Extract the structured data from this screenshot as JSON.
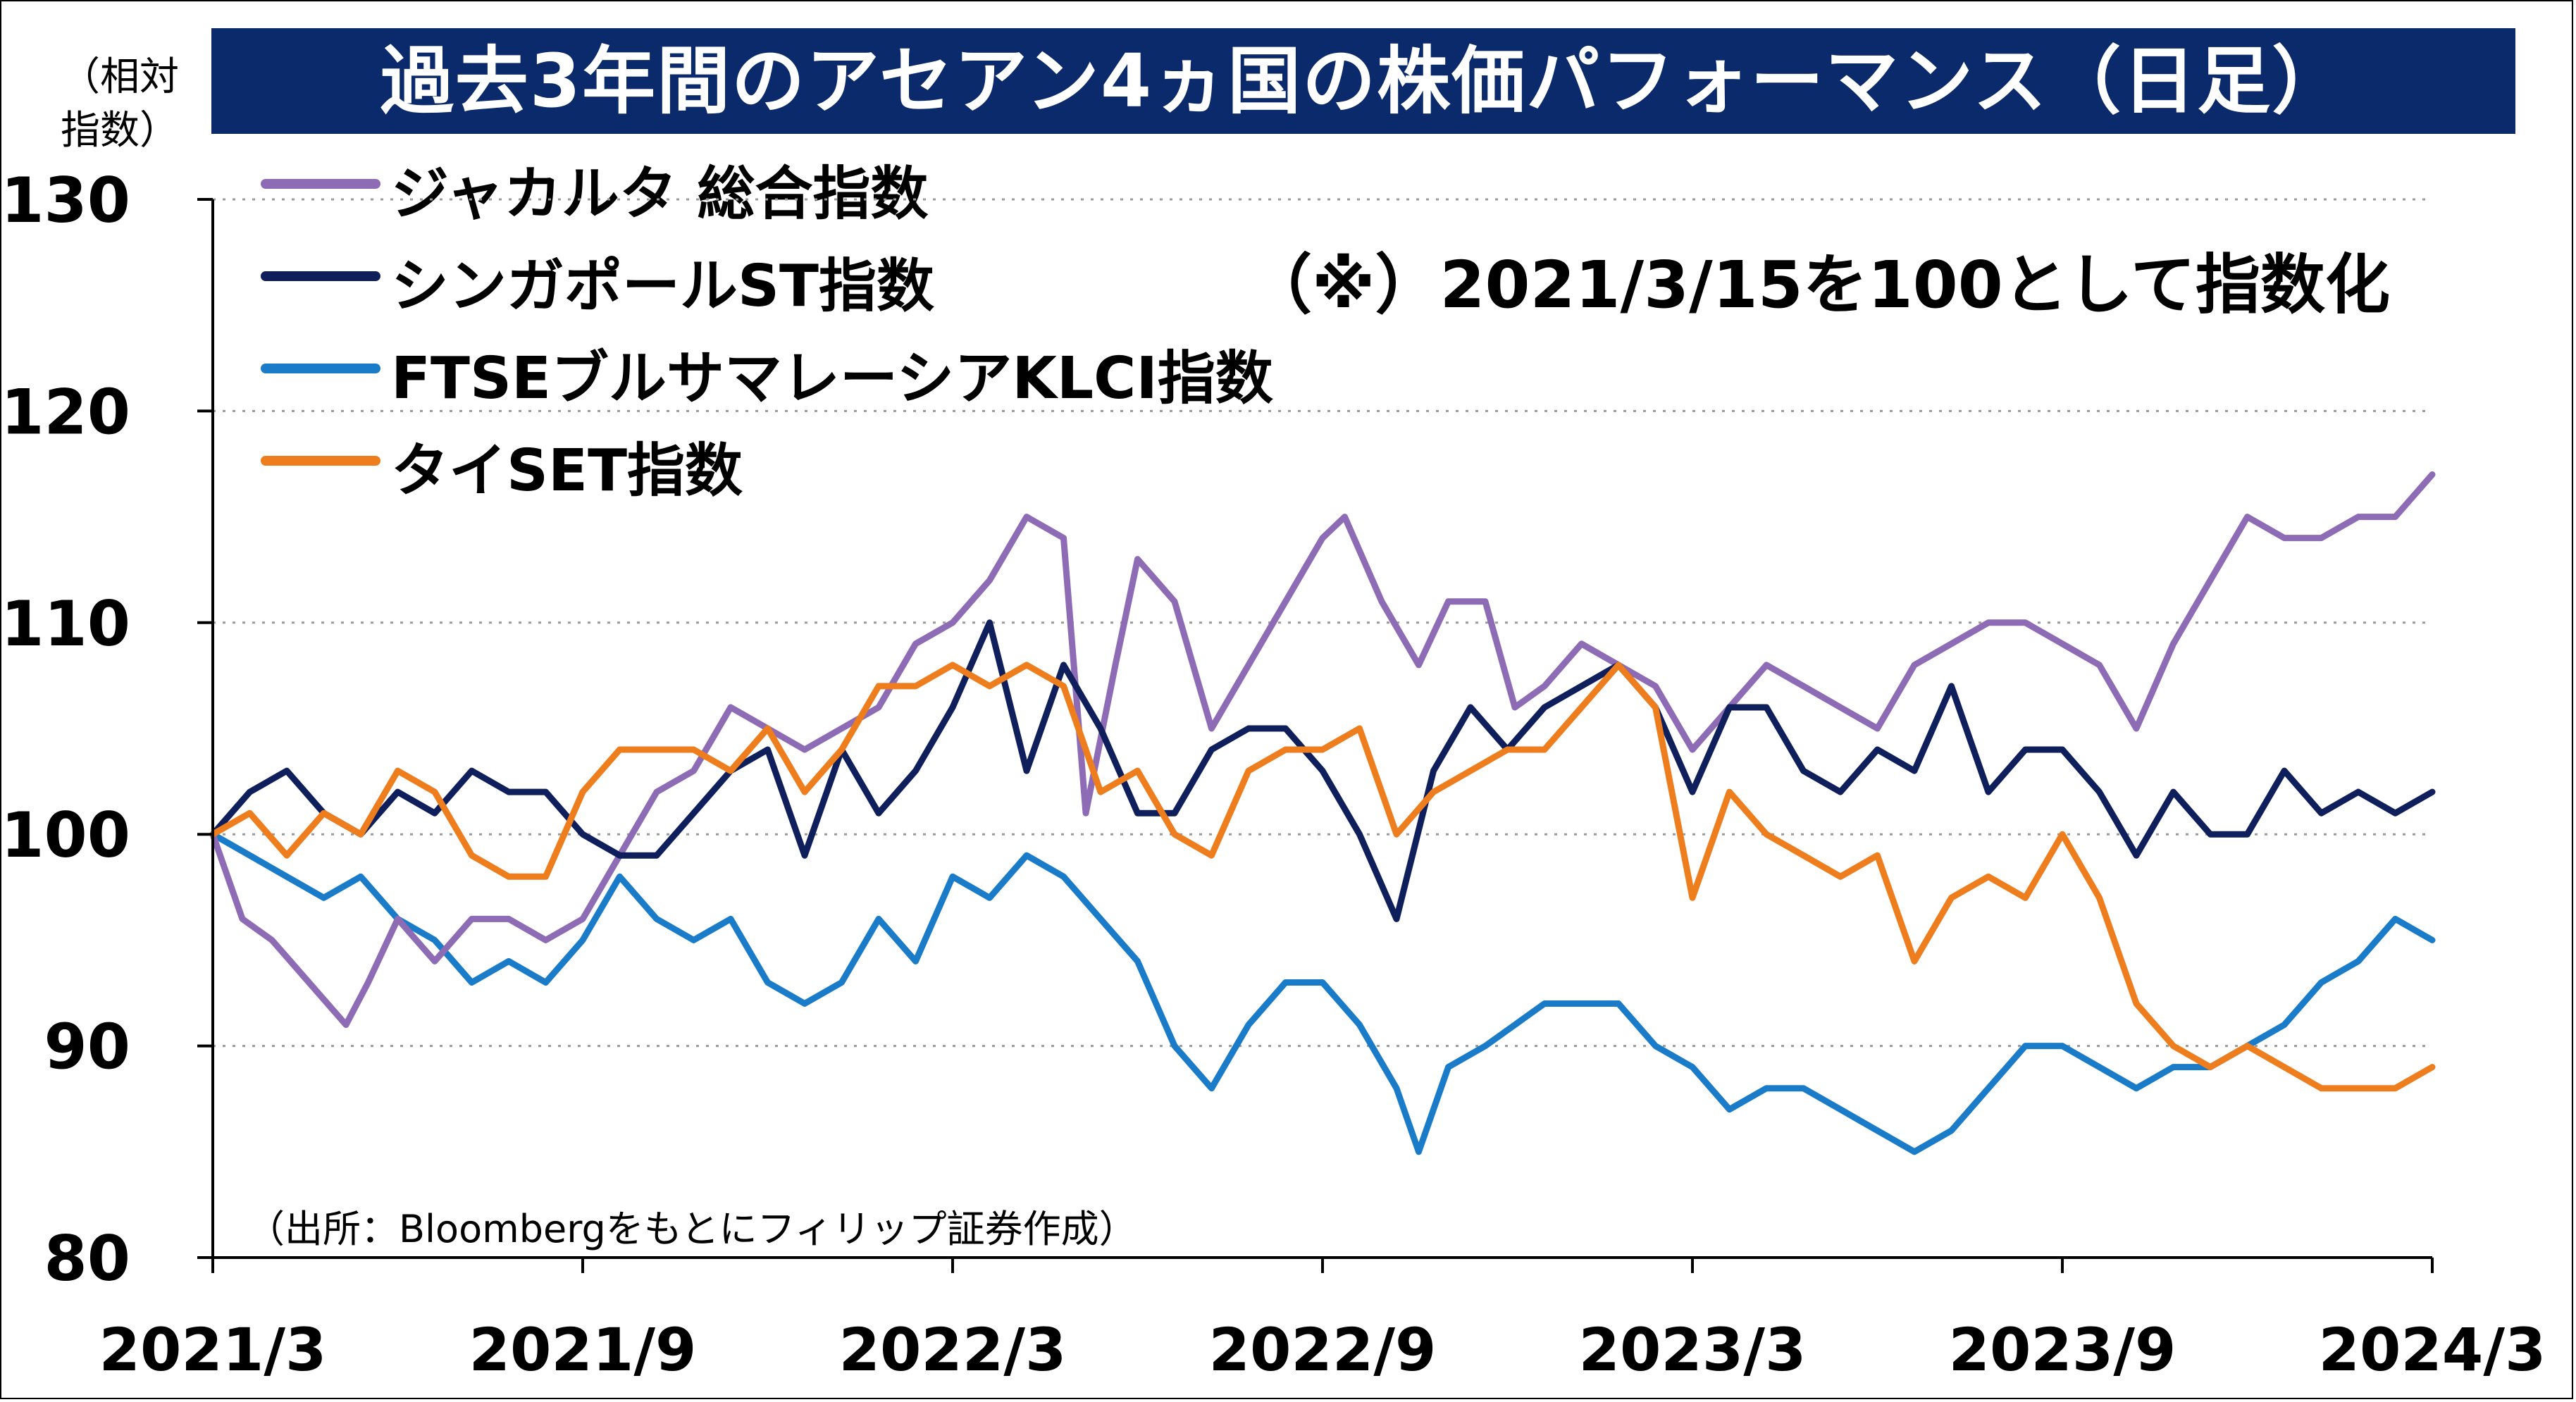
{
  "title": "過去3年間のアセアン4ヵ国の株価パフォーマンス（日足）",
  "unit_label": "（相対\n指数）",
  "note": "（※）2021/3/15を100として指数化",
  "source": "（出所：Bloombergをもとにフィリップ証券作成）",
  "chart_data": {
    "type": "line",
    "title": "過去3年間のアセアン4ヵ国の株価パフォーマンス（日足）",
    "ylabel": "（相対指数）",
    "xlabel": "",
    "ylim": [
      80,
      130
    ],
    "xlim": [
      2021.2,
      2024.2
    ],
    "y_ticks": [
      80,
      90,
      100,
      110,
      120,
      130
    ],
    "x_ticks": [
      {
        "label": "2021/3",
        "t": 2021.2
      },
      {
        "label": "2021/9",
        "t": 2021.7
      },
      {
        "label": "2022/3",
        "t": 2022.2
      },
      {
        "label": "2022/9",
        "t": 2022.7
      },
      {
        "label": "2023/3",
        "t": 2023.2
      },
      {
        "label": "2023/9",
        "t": 2023.7
      },
      {
        "label": "2024/3",
        "t": 2024.2
      }
    ],
    "grid": true,
    "legend_position": "top-left",
    "series": [
      {
        "name": "ジャカルタ 総合指数",
        "color": "#8e6bb5",
        "points": [
          [
            2021.2,
            100
          ],
          [
            2021.24,
            96
          ],
          [
            2021.28,
            95
          ],
          [
            2021.33,
            93
          ],
          [
            2021.38,
            91
          ],
          [
            2021.41,
            93
          ],
          [
            2021.45,
            96
          ],
          [
            2021.5,
            94
          ],
          [
            2021.55,
            96
          ],
          [
            2021.6,
            96
          ],
          [
            2021.65,
            95
          ],
          [
            2021.7,
            96
          ],
          [
            2021.75,
            99
          ],
          [
            2021.8,
            102
          ],
          [
            2021.85,
            103
          ],
          [
            2021.9,
            106
          ],
          [
            2021.95,
            105
          ],
          [
            2022.0,
            104
          ],
          [
            2022.05,
            105
          ],
          [
            2022.1,
            106
          ],
          [
            2022.15,
            109
          ],
          [
            2022.2,
            110
          ],
          [
            2022.25,
            112
          ],
          [
            2022.3,
            115
          ],
          [
            2022.35,
            114
          ],
          [
            2022.38,
            101
          ],
          [
            2022.42,
            108
          ],
          [
            2022.45,
            113
          ],
          [
            2022.5,
            111
          ],
          [
            2022.55,
            105
          ],
          [
            2022.6,
            108
          ],
          [
            2022.65,
            111
          ],
          [
            2022.7,
            114
          ],
          [
            2022.73,
            115
          ],
          [
            2022.78,
            111
          ],
          [
            2022.83,
            108
          ],
          [
            2022.87,
            111
          ],
          [
            2022.92,
            111
          ],
          [
            2022.96,
            106
          ],
          [
            2023.0,
            107
          ],
          [
            2023.05,
            109
          ],
          [
            2023.1,
            108
          ],
          [
            2023.15,
            107
          ],
          [
            2023.2,
            104
          ],
          [
            2023.25,
            106
          ],
          [
            2023.3,
            108
          ],
          [
            2023.35,
            107
          ],
          [
            2023.4,
            106
          ],
          [
            2023.45,
            105
          ],
          [
            2023.5,
            108
          ],
          [
            2023.55,
            109
          ],
          [
            2023.6,
            110
          ],
          [
            2023.65,
            110
          ],
          [
            2023.7,
            109
          ],
          [
            2023.75,
            108
          ],
          [
            2023.8,
            105
          ],
          [
            2023.85,
            109
          ],
          [
            2023.9,
            112
          ],
          [
            2023.95,
            115
          ],
          [
            2024.0,
            114
          ],
          [
            2024.05,
            114
          ],
          [
            2024.1,
            115
          ],
          [
            2024.15,
            115
          ],
          [
            2024.2,
            117
          ]
        ]
      },
      {
        "name": "シンガポールST指数",
        "color": "#0f1f5c",
        "points": [
          [
            2021.2,
            100
          ],
          [
            2021.25,
            102
          ],
          [
            2021.3,
            103
          ],
          [
            2021.35,
            101
          ],
          [
            2021.4,
            100
          ],
          [
            2021.45,
            102
          ],
          [
            2021.5,
            101
          ],
          [
            2021.55,
            103
          ],
          [
            2021.6,
            102
          ],
          [
            2021.65,
            102
          ],
          [
            2021.7,
            100
          ],
          [
            2021.75,
            99
          ],
          [
            2021.8,
            99
          ],
          [
            2021.85,
            101
          ],
          [
            2021.9,
            103
          ],
          [
            2021.95,
            104
          ],
          [
            2022.0,
            99
          ],
          [
            2022.05,
            104
          ],
          [
            2022.1,
            101
          ],
          [
            2022.15,
            103
          ],
          [
            2022.2,
            106
          ],
          [
            2022.25,
            110
          ],
          [
            2022.3,
            103
          ],
          [
            2022.35,
            108
          ],
          [
            2022.4,
            105
          ],
          [
            2022.45,
            101
          ],
          [
            2022.5,
            101
          ],
          [
            2022.55,
            104
          ],
          [
            2022.6,
            105
          ],
          [
            2022.65,
            105
          ],
          [
            2022.7,
            103
          ],
          [
            2022.75,
            100
          ],
          [
            2022.8,
            96
          ],
          [
            2022.85,
            103
          ],
          [
            2022.9,
            106
          ],
          [
            2022.95,
            104
          ],
          [
            2023.0,
            106
          ],
          [
            2023.05,
            107
          ],
          [
            2023.1,
            108
          ],
          [
            2023.15,
            106
          ],
          [
            2023.2,
            102
          ],
          [
            2023.25,
            106
          ],
          [
            2023.3,
            106
          ],
          [
            2023.35,
            103
          ],
          [
            2023.4,
            102
          ],
          [
            2023.45,
            104
          ],
          [
            2023.5,
            103
          ],
          [
            2023.55,
            107
          ],
          [
            2023.6,
            102
          ],
          [
            2023.65,
            104
          ],
          [
            2023.7,
            104
          ],
          [
            2023.75,
            102
          ],
          [
            2023.8,
            99
          ],
          [
            2023.85,
            102
          ],
          [
            2023.9,
            100
          ],
          [
            2023.95,
            100
          ],
          [
            2024.0,
            103
          ],
          [
            2024.05,
            101
          ],
          [
            2024.1,
            102
          ],
          [
            2024.15,
            101
          ],
          [
            2024.2,
            102
          ]
        ]
      },
      {
        "name": "FTSEブルサマレーシアKLCI指数",
        "color": "#1a7cc9",
        "points": [
          [
            2021.2,
            100
          ],
          [
            2021.25,
            99
          ],
          [
            2021.3,
            98
          ],
          [
            2021.35,
            97
          ],
          [
            2021.4,
            98
          ],
          [
            2021.45,
            96
          ],
          [
            2021.5,
            95
          ],
          [
            2021.55,
            93
          ],
          [
            2021.6,
            94
          ],
          [
            2021.65,
            93
          ],
          [
            2021.7,
            95
          ],
          [
            2021.75,
            98
          ],
          [
            2021.8,
            96
          ],
          [
            2021.85,
            95
          ],
          [
            2021.9,
            96
          ],
          [
            2021.95,
            93
          ],
          [
            2022.0,
            92
          ],
          [
            2022.05,
            93
          ],
          [
            2022.1,
            96
          ],
          [
            2022.15,
            94
          ],
          [
            2022.2,
            98
          ],
          [
            2022.25,
            97
          ],
          [
            2022.3,
            99
          ],
          [
            2022.35,
            98
          ],
          [
            2022.4,
            96
          ],
          [
            2022.45,
            94
          ],
          [
            2022.5,
            90
          ],
          [
            2022.55,
            88
          ],
          [
            2022.6,
            91
          ],
          [
            2022.65,
            93
          ],
          [
            2022.7,
            93
          ],
          [
            2022.75,
            91
          ],
          [
            2022.8,
            88
          ],
          [
            2022.83,
            85
          ],
          [
            2022.87,
            89
          ],
          [
            2022.92,
            90
          ],
          [
            2022.96,
            91
          ],
          [
            2023.0,
            92
          ],
          [
            2023.05,
            92
          ],
          [
            2023.1,
            92
          ],
          [
            2023.15,
            90
          ],
          [
            2023.2,
            89
          ],
          [
            2023.25,
            87
          ],
          [
            2023.3,
            88
          ],
          [
            2023.35,
            88
          ],
          [
            2023.4,
            87
          ],
          [
            2023.45,
            86
          ],
          [
            2023.5,
            85
          ],
          [
            2023.55,
            86
          ],
          [
            2023.6,
            88
          ],
          [
            2023.65,
            90
          ],
          [
            2023.7,
            90
          ],
          [
            2023.75,
            89
          ],
          [
            2023.8,
            88
          ],
          [
            2023.85,
            89
          ],
          [
            2023.9,
            89
          ],
          [
            2023.95,
            90
          ],
          [
            2024.0,
            91
          ],
          [
            2024.05,
            93
          ],
          [
            2024.1,
            94
          ],
          [
            2024.15,
            96
          ],
          [
            2024.2,
            95
          ]
        ]
      },
      {
        "name": "タイSET指数",
        "color": "#ee7d1e",
        "points": [
          [
            2021.2,
            100
          ],
          [
            2021.25,
            101
          ],
          [
            2021.3,
            99
          ],
          [
            2021.35,
            101
          ],
          [
            2021.4,
            100
          ],
          [
            2021.45,
            103
          ],
          [
            2021.5,
            102
          ],
          [
            2021.55,
            99
          ],
          [
            2021.6,
            98
          ],
          [
            2021.65,
            98
          ],
          [
            2021.7,
            102
          ],
          [
            2021.75,
            104
          ],
          [
            2021.8,
            104
          ],
          [
            2021.85,
            104
          ],
          [
            2021.9,
            103
          ],
          [
            2021.95,
            105
          ],
          [
            2022.0,
            102
          ],
          [
            2022.05,
            104
          ],
          [
            2022.1,
            107
          ],
          [
            2022.15,
            107
          ],
          [
            2022.2,
            108
          ],
          [
            2022.25,
            107
          ],
          [
            2022.3,
            108
          ],
          [
            2022.35,
            107
          ],
          [
            2022.4,
            102
          ],
          [
            2022.45,
            103
          ],
          [
            2022.5,
            100
          ],
          [
            2022.55,
            99
          ],
          [
            2022.6,
            103
          ],
          [
            2022.65,
            104
          ],
          [
            2022.7,
            104
          ],
          [
            2022.75,
            105
          ],
          [
            2022.8,
            100
          ],
          [
            2022.85,
            102
          ],
          [
            2022.9,
            103
          ],
          [
            2022.95,
            104
          ],
          [
            2023.0,
            104
          ],
          [
            2023.05,
            106
          ],
          [
            2023.1,
            108
          ],
          [
            2023.15,
            106
          ],
          [
            2023.2,
            97
          ],
          [
            2023.25,
            102
          ],
          [
            2023.3,
            100
          ],
          [
            2023.35,
            99
          ],
          [
            2023.4,
            98
          ],
          [
            2023.45,
            99
          ],
          [
            2023.5,
            94
          ],
          [
            2023.55,
            97
          ],
          [
            2023.6,
            98
          ],
          [
            2023.65,
            97
          ],
          [
            2023.7,
            100
          ],
          [
            2023.75,
            97
          ],
          [
            2023.8,
            92
          ],
          [
            2023.85,
            90
          ],
          [
            2023.9,
            89
          ],
          [
            2023.95,
            90
          ],
          [
            2024.0,
            89
          ],
          [
            2024.05,
            88
          ],
          [
            2024.1,
            88
          ],
          [
            2024.15,
            88
          ],
          [
            2024.2,
            89
          ]
        ]
      }
    ]
  }
}
